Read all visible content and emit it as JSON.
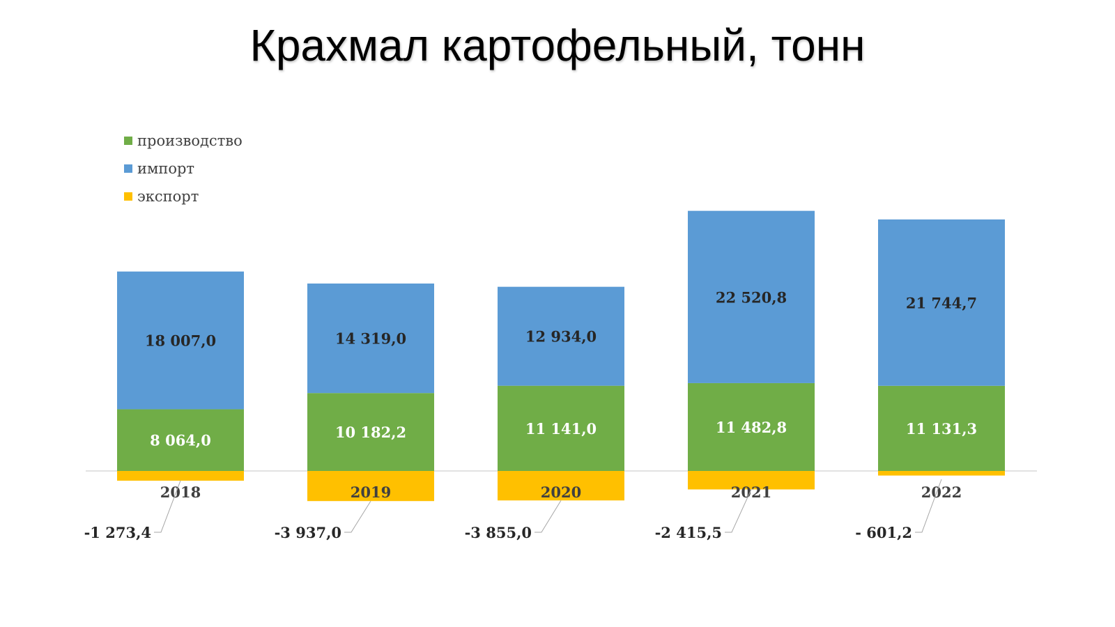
{
  "title": "Крахмал картофельный, тонн",
  "colors": {
    "production": "#70ad47",
    "import": "#5b9bd5",
    "export": "#ffc000",
    "axis": "#d9d9d9",
    "leader": "#a6a6a6"
  },
  "chart_data": {
    "type": "bar",
    "stacked": true,
    "legend_position": "top-left",
    "grid": false,
    "categories": [
      "2018",
      "2019",
      "2020",
      "2021",
      "2022"
    ],
    "series": [
      {
        "name": "производство",
        "values": [
          8064.0,
          10182.2,
          11141.0,
          11482.8,
          11131.3
        ],
        "labels": [
          "8 064,0",
          "10 182,2",
          "11 141,0",
          "11 482,8",
          "11 131,3"
        ]
      },
      {
        "name": "импорт",
        "values": [
          18007.0,
          14319.0,
          12934.0,
          22520.8,
          21744.7
        ],
        "labels": [
          "18 007,0",
          "14 319,0",
          "12 934,0",
          "22 520,8",
          "21 744,7"
        ]
      },
      {
        "name": "экспорт",
        "values": [
          -1273.4,
          -3937.0,
          -3855.0,
          -2415.5,
          -601.2
        ],
        "labels": [
          "-1 273,4",
          "-3 937,0",
          "-3 855,0",
          "-2 415,5",
          "- 601,2"
        ]
      }
    ],
    "ylim": [
      -4000,
      35000
    ]
  }
}
